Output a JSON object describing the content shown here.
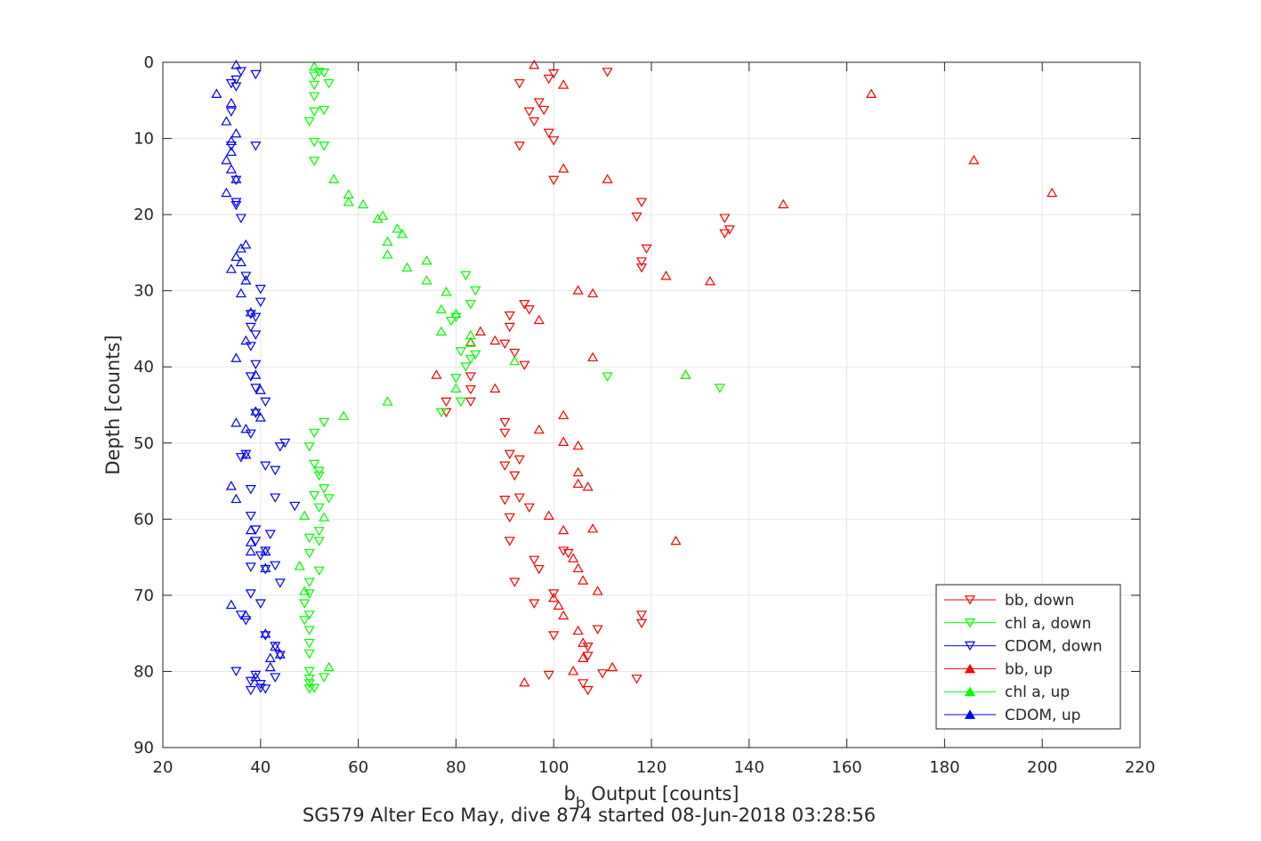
{
  "chart_data": {
    "type": "scatter",
    "title": "",
    "caption_prefix": "SG579 Alter Eco May, dive 874 started 08-Jun-2018 03:28:56",
    "xlabel_main": "b",
    "xlabel_sub": "b",
    "xlabel_rest": " Output [counts]",
    "ylabel": "Depth [counts]",
    "xlim": [
      20,
      220
    ],
    "ylim": [
      0,
      90
    ],
    "y_reversed": true,
    "grid": true,
    "xticks": [
      "20",
      "40",
      "60",
      "80",
      "100",
      "120",
      "140",
      "160",
      "180",
      "200",
      "220"
    ],
    "yticks": [
      "0",
      "10",
      "20",
      "30",
      "40",
      "50",
      "60",
      "70",
      "80",
      "90"
    ],
    "legend_position": "bottom-right",
    "series": [
      {
        "name": "bb, down",
        "color": "#ff0000",
        "marker": "triangle-down",
        "points": [
          [
            100,
            1.5
          ],
          [
            111,
            1.3
          ],
          [
            99,
            2.2
          ],
          [
            93,
            2.8
          ],
          [
            97,
            5.3
          ],
          [
            95,
            6.5
          ],
          [
            98,
            6.3
          ],
          [
            96,
            7.8
          ],
          [
            99,
            9.3
          ],
          [
            100,
            10.3
          ],
          [
            93,
            11
          ],
          [
            100,
            15.5
          ],
          [
            118,
            18.4
          ],
          [
            117,
            20.3
          ],
          [
            135,
            20.5
          ],
          [
            135,
            22.5
          ],
          [
            136,
            22
          ],
          [
            119,
            24.5
          ],
          [
            118,
            26.2
          ],
          [
            118,
            27
          ],
          [
            91,
            33.3
          ],
          [
            94,
            31.8
          ],
          [
            95,
            32.5
          ],
          [
            91,
            34.8
          ],
          [
            90,
            37
          ],
          [
            92,
            38.2
          ],
          [
            94,
            39.8
          ],
          [
            83,
            41.3
          ],
          [
            83,
            43
          ],
          [
            83,
            44.6
          ],
          [
            78,
            44.6
          ],
          [
            78,
            46
          ],
          [
            90,
            47.3
          ],
          [
            90,
            48.7
          ],
          [
            91,
            51.5
          ],
          [
            90,
            53
          ],
          [
            93,
            52.2
          ],
          [
            92,
            54.3
          ],
          [
            90,
            57.5
          ],
          [
            93,
            57.2
          ],
          [
            95,
            58.5
          ],
          [
            91,
            59.8
          ],
          [
            91,
            62.9
          ],
          [
            96,
            65.4
          ],
          [
            97,
            66.6
          ],
          [
            92,
            68.3
          ],
          [
            96,
            71.1
          ],
          [
            102,
            64.2
          ],
          [
            103,
            64.5
          ],
          [
            100,
            69.8
          ],
          [
            100,
            75.3
          ],
          [
            99,
            80.5
          ],
          [
            107,
            76.8
          ],
          [
            107,
            78
          ],
          [
            110,
            80.3
          ],
          [
            117,
            81
          ],
          [
            106,
            81.6
          ],
          [
            107,
            82.5
          ],
          [
            118,
            72.6
          ],
          [
            118,
            73.7
          ],
          [
            109,
            74.5
          ]
        ]
      },
      {
        "name": "chl a, down",
        "color": "#00ff00",
        "marker": "triangle-down",
        "points": [
          [
            53,
            1.4
          ],
          [
            52,
            1.3
          ],
          [
            54,
            2.8
          ],
          [
            51,
            1.8
          ],
          [
            51,
            3
          ],
          [
            51,
            4.5
          ],
          [
            51,
            6.5
          ],
          [
            53,
            6.3
          ],
          [
            50,
            7.8
          ],
          [
            51,
            10.5
          ],
          [
            53,
            11
          ],
          [
            51,
            13
          ],
          [
            82,
            28
          ],
          [
            84,
            30
          ],
          [
            83,
            31.8
          ],
          [
            80,
            33.5
          ],
          [
            79,
            34
          ],
          [
            81,
            44.6
          ],
          [
            77,
            46
          ],
          [
            84,
            38.4
          ],
          [
            83,
            39
          ],
          [
            81,
            38
          ],
          [
            82,
            40
          ],
          [
            80,
            41.5
          ],
          [
            111,
            41.3
          ],
          [
            134,
            42.8
          ],
          [
            53,
            47.3
          ],
          [
            51,
            48.7
          ],
          [
            50,
            50.5
          ],
          [
            51,
            52.8
          ],
          [
            52,
            54.3
          ],
          [
            52,
            53.7
          ],
          [
            53,
            56
          ],
          [
            54,
            57.3
          ],
          [
            51,
            56.9
          ],
          [
            52,
            58.5
          ],
          [
            52,
            61.6
          ],
          [
            50,
            62.5
          ],
          [
            52,
            62.9
          ],
          [
            50,
            64.5
          ],
          [
            52,
            66.8
          ],
          [
            50,
            68.3
          ],
          [
            50,
            69.8
          ],
          [
            49,
            71.1
          ],
          [
            50,
            72.6
          ],
          [
            49,
            73.3
          ],
          [
            50,
            74.6
          ],
          [
            50,
            76.3
          ],
          [
            50,
            77.7
          ],
          [
            50,
            80
          ],
          [
            50,
            81
          ],
          [
            50,
            81.6
          ],
          [
            50,
            82.3
          ],
          [
            53,
            80.8
          ],
          [
            51,
            82.2
          ]
        ]
      },
      {
        "name": "CDOM, down",
        "color": "#0000ff",
        "marker": "triangle-down",
        "points": [
          [
            36,
            1.2
          ],
          [
            39,
            1.6
          ],
          [
            35,
            2.3
          ],
          [
            34,
            2.8
          ],
          [
            35,
            3.2
          ],
          [
            34,
            6.5
          ],
          [
            34,
            11
          ],
          [
            39,
            11
          ],
          [
            35,
            15.5
          ],
          [
            35,
            18.4
          ],
          [
            35,
            18.8
          ],
          [
            36,
            20.5
          ],
          [
            37,
            28.1
          ],
          [
            40,
            29.8
          ],
          [
            40,
            31.5
          ],
          [
            39,
            33.5
          ],
          [
            38,
            33.1
          ],
          [
            38,
            34.8
          ],
          [
            39,
            35.8
          ],
          [
            38,
            37.3
          ],
          [
            39,
            39.7
          ],
          [
            38,
            41.3
          ],
          [
            39,
            42.8
          ],
          [
            41,
            44.6
          ],
          [
            39,
            46.1
          ],
          [
            38,
            48.8
          ],
          [
            44,
            50.5
          ],
          [
            45,
            50
          ],
          [
            37,
            51.5
          ],
          [
            36,
            51.9
          ],
          [
            41,
            53
          ],
          [
            43,
            53.6
          ],
          [
            38,
            56.1
          ],
          [
            43,
            57.2
          ],
          [
            47,
            58.3
          ],
          [
            38,
            59.6
          ],
          [
            39,
            61.4
          ],
          [
            42,
            62
          ],
          [
            39,
            62.9
          ],
          [
            41,
            64.2
          ],
          [
            40,
            64.8
          ],
          [
            43,
            66.1
          ],
          [
            38,
            66.3
          ],
          [
            41,
            66.6
          ],
          [
            44,
            68.4
          ],
          [
            38,
            69.8
          ],
          [
            40,
            71.1
          ],
          [
            36,
            72.6
          ],
          [
            37,
            73.3
          ],
          [
            41,
            75.3
          ],
          [
            43,
            76.7
          ],
          [
            44,
            77.9
          ],
          [
            35,
            80
          ],
          [
            43,
            80.8
          ],
          [
            39,
            80.5
          ],
          [
            38,
            81.3
          ],
          [
            40,
            81.7
          ],
          [
            38,
            82.5
          ],
          [
            40,
            82.2
          ],
          [
            41,
            82.3
          ]
        ]
      },
      {
        "name": "bb, up",
        "color": "#ff0000",
        "marker": "triangle-up",
        "points": [
          [
            96,
            0.3
          ],
          [
            102,
            2.9
          ],
          [
            165,
            4.1
          ],
          [
            186,
            12.8
          ],
          [
            102,
            13.9
          ],
          [
            111,
            15.3
          ],
          [
            202,
            17.1
          ],
          [
            147,
            18.6
          ],
          [
            123,
            28
          ],
          [
            132,
            28.7
          ],
          [
            105,
            29.9
          ],
          [
            108,
            30.3
          ],
          [
            97,
            33.8
          ],
          [
            85,
            35.3
          ],
          [
            83,
            36.7
          ],
          [
            88,
            36.5
          ],
          [
            108,
            38.7
          ],
          [
            76,
            41
          ],
          [
            127,
            41
          ],
          [
            88,
            42.8
          ],
          [
            102,
            46.3
          ],
          [
            97,
            48.2
          ],
          [
            102,
            49.8
          ],
          [
            105,
            50.3
          ],
          [
            105,
            53.8
          ],
          [
            107,
            55.7
          ],
          [
            105,
            55.3
          ],
          [
            99,
            59.5
          ],
          [
            102,
            61.4
          ],
          [
            108,
            61.2
          ],
          [
            125,
            62.8
          ],
          [
            104,
            65.1
          ],
          [
            105,
            66.4
          ],
          [
            106,
            68
          ],
          [
            109,
            69.4
          ],
          [
            100,
            70.3
          ],
          [
            101,
            71.3
          ],
          [
            102,
            72.6
          ],
          [
            105,
            74.6
          ],
          [
            106,
            76.2
          ],
          [
            106,
            78.2
          ],
          [
            112,
            79.4
          ],
          [
            104,
            79.9
          ],
          [
            94,
            81.4
          ]
        ]
      },
      {
        "name": "chl a, up",
        "color": "#00ff00",
        "marker": "triangle-up",
        "points": [
          [
            51,
            0.5
          ],
          [
            55,
            15.3
          ],
          [
            58,
            17.3
          ],
          [
            58,
            18.3
          ],
          [
            61,
            18.6
          ],
          [
            65,
            20.1
          ],
          [
            64,
            20.5
          ],
          [
            68,
            21.8
          ],
          [
            69,
            22.5
          ],
          [
            66,
            23.5
          ],
          [
            66,
            25.2
          ],
          [
            70,
            26.9
          ],
          [
            74,
            26
          ],
          [
            74,
            28.6
          ],
          [
            78,
            30.1
          ],
          [
            77,
            32.4
          ],
          [
            80,
            33
          ],
          [
            77,
            35.3
          ],
          [
            83,
            35.8
          ],
          [
            83,
            36.8
          ],
          [
            92,
            39.2
          ],
          [
            127,
            41
          ],
          [
            80,
            42.8
          ],
          [
            66,
            44.5
          ],
          [
            57,
            46.4
          ],
          [
            53,
            59.7
          ],
          [
            49,
            59.5
          ],
          [
            48,
            66.1
          ],
          [
            49,
            69.4
          ],
          [
            54,
            79.4
          ]
        ]
      },
      {
        "name": "CDOM, up",
        "color": "#0000ff",
        "marker": "triangle-up",
        "points": [
          [
            35,
            0.3
          ],
          [
            31,
            4.1
          ],
          [
            34,
            5.3
          ],
          [
            33,
            7.7
          ],
          [
            35,
            9.3
          ],
          [
            34,
            10.3
          ],
          [
            34,
            11.7
          ],
          [
            33,
            12.8
          ],
          [
            34,
            14
          ],
          [
            35,
            15.3
          ],
          [
            33,
            17.1
          ],
          [
            37,
            23.9
          ],
          [
            36,
            24.4
          ],
          [
            35,
            25.5
          ],
          [
            36,
            26.2
          ],
          [
            34,
            27.1
          ],
          [
            37,
            28.6
          ],
          [
            36,
            30.3
          ],
          [
            38,
            32.8
          ],
          [
            37,
            36.5
          ],
          [
            35,
            38.8
          ],
          [
            39,
            41
          ],
          [
            40,
            43
          ],
          [
            39,
            45.8
          ],
          [
            40,
            46.6
          ],
          [
            35,
            47.3
          ],
          [
            37,
            48.1
          ],
          [
            37,
            51.5
          ],
          [
            34,
            55.6
          ],
          [
            35,
            57.3
          ],
          [
            38,
            61.4
          ],
          [
            38,
            63
          ],
          [
            41,
            64.2
          ],
          [
            38,
            64.2
          ],
          [
            41,
            66.4
          ],
          [
            34,
            71.2
          ],
          [
            37,
            72.6
          ],
          [
            41,
            75
          ],
          [
            43,
            76.7
          ],
          [
            42,
            78.2
          ],
          [
            44,
            77.7
          ],
          [
            42,
            79.4
          ],
          [
            39,
            80.7
          ]
        ]
      }
    ]
  }
}
